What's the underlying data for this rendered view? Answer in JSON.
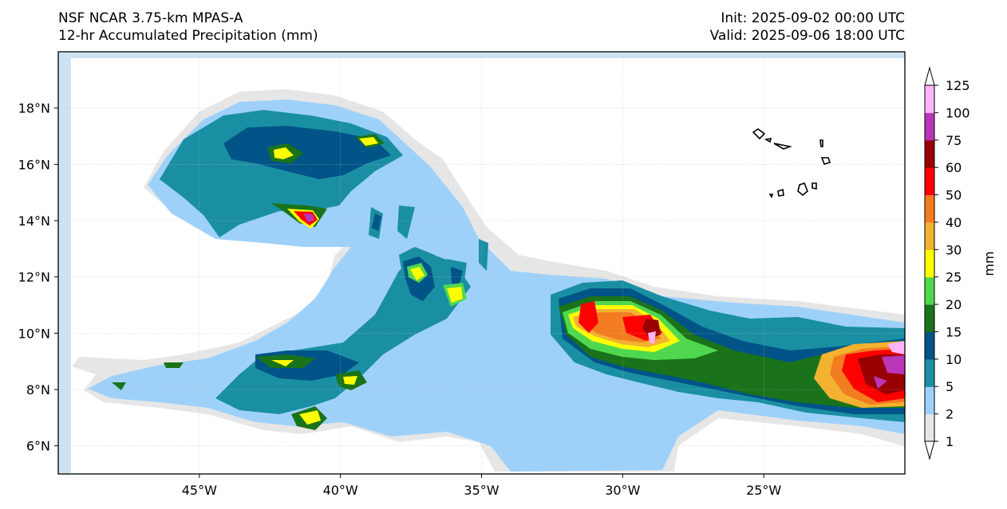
{
  "header": {
    "model": "NSF NCAR 3.75-km MPAS-A",
    "field": "12-hr Accumulated Precipitation (mm)",
    "init": "Init: 2025-09-02 00:00 UTC",
    "valid": "Valid: 2025-09-06 18:00 UTC"
  },
  "map": {
    "lon_range": [
      -50,
      -20
    ],
    "lat_range": [
      5,
      20
    ],
    "lon_ticks": [
      {
        "value": -45,
        "label": "45°W"
      },
      {
        "value": -40,
        "label": "40°W"
      },
      {
        "value": -35,
        "label": "35°W"
      },
      {
        "value": -30,
        "label": "30°W"
      },
      {
        "value": -25,
        "label": "25°W"
      }
    ],
    "lat_ticks": [
      {
        "value": 6,
        "label": "6°N"
      },
      {
        "value": 8,
        "label": "8°N"
      },
      {
        "value": 10,
        "label": "10°N"
      },
      {
        "value": 12,
        "label": "12°N"
      },
      {
        "value": 14,
        "label": "14°N"
      },
      {
        "value": 16,
        "label": "16°N"
      },
      {
        "value": 18,
        "label": "18°N"
      }
    ],
    "gridlines": true,
    "features": [
      "cape-verde-islands-coastline"
    ]
  },
  "colorbar": {
    "label": "mm",
    "extend": "both",
    "levels": [
      {
        "value": 1,
        "label": "1"
      },
      {
        "value": 2,
        "label": "2"
      },
      {
        "value": 5,
        "label": "5"
      },
      {
        "value": 10,
        "label": "10"
      },
      {
        "value": 15,
        "label": "15"
      },
      {
        "value": 20,
        "label": "20"
      },
      {
        "value": 25,
        "label": "25"
      },
      {
        "value": 30,
        "label": "30"
      },
      {
        "value": 40,
        "label": "40"
      },
      {
        "value": 50,
        "label": "50"
      },
      {
        "value": 60,
        "label": "60"
      },
      {
        "value": 75,
        "label": "75"
      },
      {
        "value": 100,
        "label": "100"
      },
      {
        "value": 125,
        "label": "125"
      }
    ],
    "colors": [
      "#e6e6e6",
      "#9ed1fa",
      "#1a8fa3",
      "#005487",
      "#1a731a",
      "#50d750",
      "#ffff00",
      "#f3b230",
      "#f37c20",
      "#ff0000",
      "#990000",
      "#b935b9",
      "#ffb3f9"
    ],
    "under_color": "#ffffff",
    "over_color": "#ffffff"
  }
}
